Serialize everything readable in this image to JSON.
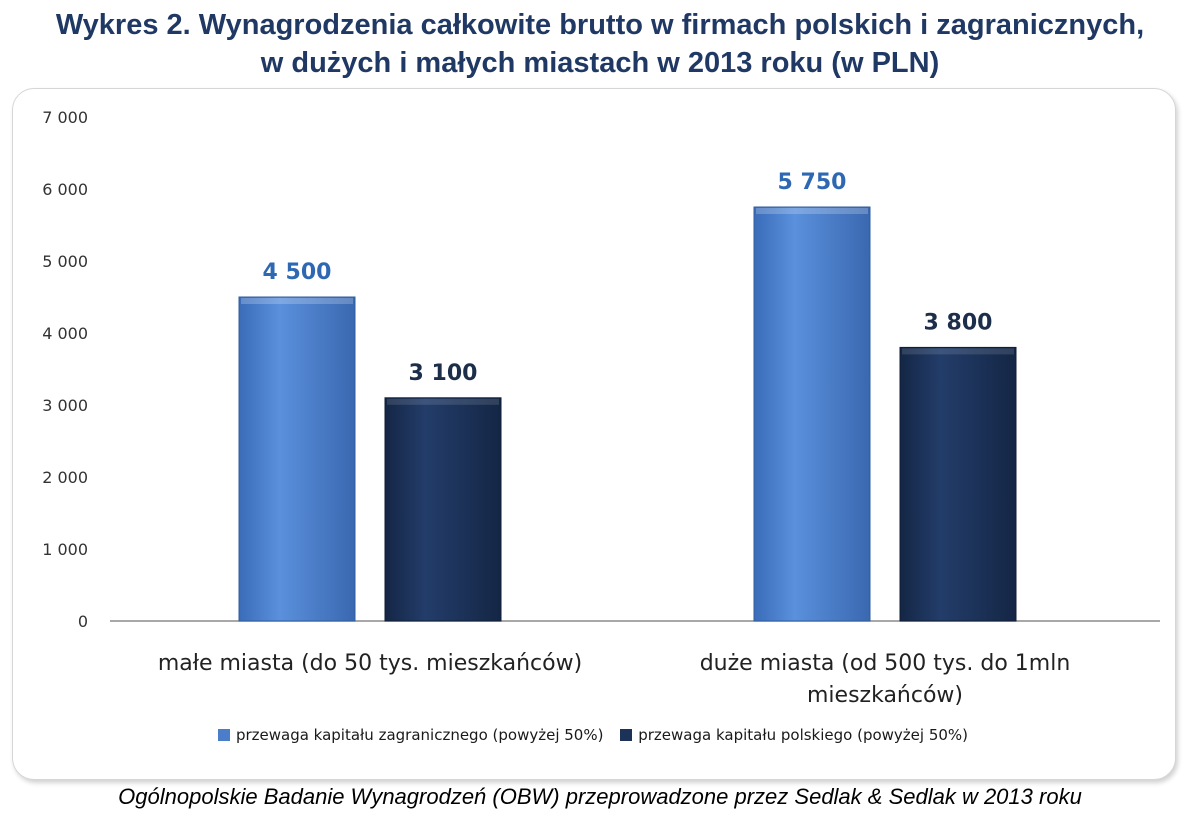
{
  "title_line1": "Wykres 2. Wynagrodzenia całkowite brutto w firmach polskich i zagranicznych,",
  "title_line2": "w dużych i małych miastach w 2013 roku (w PLN)",
  "source": "Ogólnopolskie Badanie Wynagrodzeń (OBW) przeprowadzone przez Sedlak & Sedlak w 2013 roku",
  "colors": {
    "foreign": "#4a7ecb",
    "polish": "#1c3259",
    "label_foreign": "#2e68b3",
    "label_polish": "#1c2e4a"
  },
  "chart_data": {
    "type": "bar",
    "categories": [
      [
        "małe miasta (do 50 tys. mieszkańców)"
      ],
      [
        "duże miasta (od 500 tys. do 1mln",
        "mieszkańców)"
      ]
    ],
    "series": [
      {
        "name": "przewaga kapitału zagranicznego (powyżej 50%)",
        "values": [
          4500,
          5750
        ],
        "labels": [
          "4 500",
          "5 750"
        ]
      },
      {
        "name": "przewaga kapitału polskiego (powyżej 50%)",
        "values": [
          3100,
          3800
        ],
        "labels": [
          "3 100",
          "3 800"
        ]
      }
    ],
    "ylim": [
      0,
      7000
    ],
    "yticks": [
      0,
      1000,
      2000,
      3000,
      4000,
      5000,
      6000,
      7000
    ],
    "ytick_labels": [
      "0",
      "1 000",
      "2 000",
      "3 000",
      "4 000",
      "5 000",
      "6 000",
      "7 000"
    ],
    "grid": false,
    "legend": "bottom"
  }
}
